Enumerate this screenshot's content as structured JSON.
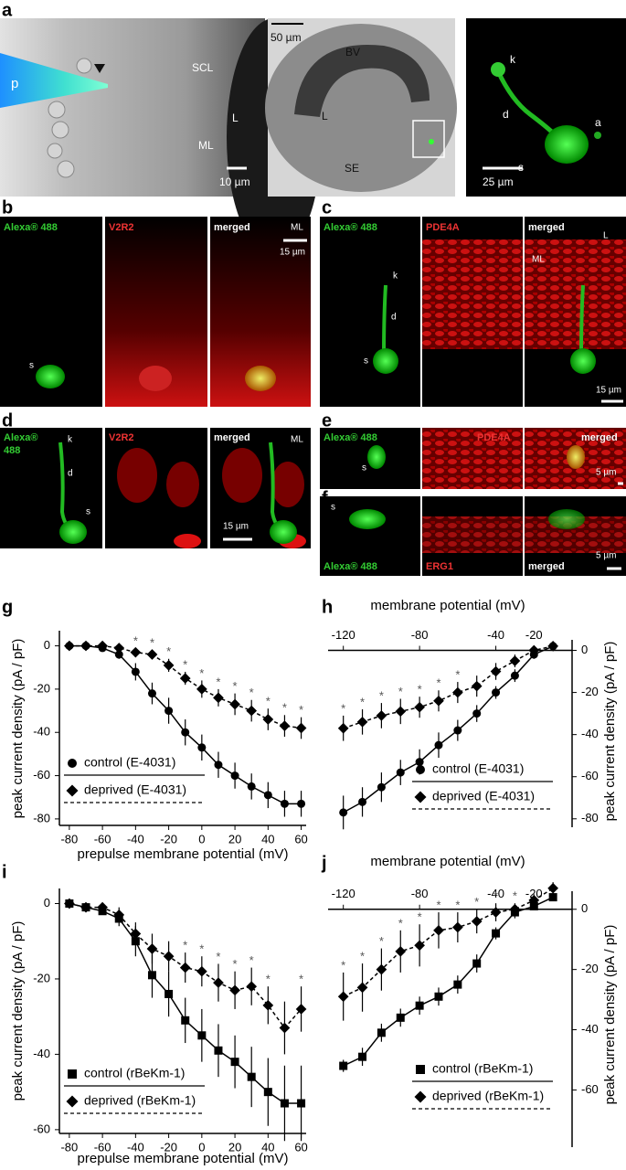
{
  "panels": {
    "a": {
      "label": "a",
      "left": {
        "pipette": "p",
        "scl": "SCL",
        "lumen": "L",
        "ml": "ML",
        "scale": "10 µm"
      },
      "middle": {
        "scale": "50 µm",
        "bv": "BV",
        "lumen": "L",
        "se": "SE"
      },
      "right": {
        "k": "k",
        "d": "d",
        "a": "a",
        "s": "s",
        "scale": "25 µm"
      }
    },
    "b": {
      "label": "b",
      "channels": [
        "Alexa® 488",
        "V2R2",
        "merged"
      ],
      "ml": "ML",
      "scale": "15 µm",
      "s": "s"
    },
    "c": {
      "label": "c",
      "channels": [
        "Alexa® 488",
        "PDE4A",
        "merged"
      ],
      "lumen": "L",
      "ml": "ML",
      "k": "k",
      "d": "d",
      "s": "s",
      "scale": "15 µm"
    },
    "d": {
      "label": "d",
      "channel_1": [
        "Alexa®",
        "488"
      ],
      "channel_2": "V2R2",
      "channel_3": "merged",
      "ml": "ML",
      "k": "k",
      "d": "d",
      "s": "s",
      "scale": "15 µm"
    },
    "e": {
      "label": "e",
      "channels": [
        "Alexa® 488",
        "PDE4A",
        "merged"
      ],
      "s": "s",
      "scale": "5 µm"
    },
    "f": {
      "label": "f",
      "channels": [
        "Alexa® 488",
        "ERG1",
        "merged"
      ],
      "s": "s",
      "scale": "5 µm"
    }
  },
  "chart_data": [
    {
      "type": "line",
      "panel_label": "g",
      "xlabel": "prepulse membrane potential (mV)",
      "ylabel": "peak current density (pA / pF)",
      "x": [
        -80,
        -70,
        -60,
        -50,
        -40,
        -30,
        -20,
        -10,
        0,
        10,
        20,
        30,
        40,
        50,
        60
      ],
      "series": [
        {
          "name": "control (E-4031)",
          "color": "#000000",
          "marker": "circle",
          "line": "solid",
          "values": [
            0,
            0,
            -1,
            -4,
            -12,
            -22,
            -30,
            -40,
            -47,
            -55,
            -60,
            -65,
            -69,
            -73,
            -73
          ],
          "errors": [
            0.5,
            0.5,
            1,
            2,
            4,
            5,
            6,
            6,
            6,
            6,
            6,
            6,
            6,
            6,
            6
          ]
        },
        {
          "name": "deprived (E-4031)",
          "color": "#000000",
          "marker": "diamond",
          "line": "dashed",
          "values": [
            0,
            0,
            0,
            -1,
            -3,
            -4,
            -9,
            -15,
            -20,
            -24,
            -27,
            -30,
            -34,
            -37,
            -38
          ],
          "errors": [
            0.5,
            0.5,
            0.5,
            1,
            2,
            2,
            3,
            3,
            4,
            4,
            5,
            5,
            5,
            5,
            5
          ]
        }
      ],
      "xlim": [
        -86,
        63
      ],
      "ylim": [
        -83,
        7
      ],
      "xticks": [
        -80,
        -60,
        -40,
        -20,
        0,
        20,
        40,
        60
      ],
      "yticks": [
        0,
        -20,
        -40,
        -60,
        -80
      ],
      "x_axis": "bottom",
      "y_axis": "left",
      "significance_marker": "*",
      "significant_x": [
        -40,
        -30,
        -20,
        -10,
        0,
        10,
        20,
        30,
        40,
        50,
        60
      ]
    },
    {
      "type": "line",
      "panel_label": "h",
      "xlabel": "membrane potential (mV)",
      "ylabel": "peak current density (pA / pF)",
      "x": [
        -120,
        -110,
        -100,
        -90,
        -80,
        -70,
        -60,
        -50,
        -40,
        -30,
        -20,
        -10
      ],
      "series": [
        {
          "name": "control (E-4031)",
          "color": "#000000",
          "marker": "circle",
          "line": "solid",
          "values": [
            -77,
            -72,
            -65,
            -58,
            -53,
            -45,
            -38,
            -30,
            -20,
            -12,
            -2,
            2
          ],
          "errors": [
            8,
            7,
            7,
            6,
            6,
            6,
            5,
            4,
            3,
            3,
            2,
            1
          ]
        },
        {
          "name": "deprived (E-4031)",
          "color": "#000000",
          "marker": "diamond",
          "line": "dashed",
          "values": [
            -37,
            -34,
            -31,
            -29,
            -27,
            -24,
            -20,
            -17,
            -10,
            -5,
            0,
            2
          ],
          "errors": [
            6,
            6,
            6,
            6,
            5,
            5,
            5,
            5,
            4,
            3,
            2,
            1
          ]
        }
      ],
      "xlim": [
        -128,
        0
      ],
      "ylim": [
        -84,
        5
      ],
      "xticks": [
        -120,
        -80,
        -40,
        -20
      ],
      "yticks": [
        0,
        -20,
        -40,
        -60,
        -80
      ],
      "x_axis": "top",
      "y_axis": "right",
      "significance_marker": "*",
      "significant_x": [
        -120,
        -110,
        -100,
        -90,
        -80,
        -70,
        -60
      ]
    },
    {
      "type": "line",
      "panel_label": "i",
      "xlabel": "prepulse membrane potential (mV)",
      "ylabel": "peak current density (pA / pF)",
      "x": [
        -80,
        -70,
        -60,
        -50,
        -40,
        -30,
        -20,
        -10,
        0,
        10,
        20,
        30,
        40,
        50,
        60
      ],
      "series": [
        {
          "name": "control (rBeKm-1)",
          "color": "#000000",
          "marker": "square",
          "line": "solid",
          "values": [
            0,
            -1,
            -2,
            -4,
            -10,
            -19,
            -24,
            -31,
            -35,
            -39,
            -42,
            -46,
            -50,
            -53,
            -53
          ],
          "errors": [
            1,
            1,
            1,
            2,
            4,
            6,
            6,
            6,
            7,
            7,
            7,
            8,
            9,
            10,
            10
          ]
        },
        {
          "name": "deprived (rBeKm-1)",
          "color": "#000000",
          "marker": "diamond",
          "line": "dashed",
          "values": [
            0,
            -1,
            -1,
            -3,
            -8,
            -12,
            -14,
            -17,
            -18,
            -21,
            -23,
            -22,
            -27,
            -33,
            -28
          ],
          "errors": [
            1,
            1,
            1,
            2,
            3,
            4,
            4,
            4,
            4,
            5,
            5,
            5,
            5,
            7,
            6
          ]
        }
      ],
      "xlim": [
        -86,
        63
      ],
      "ylim": [
        -61,
        4
      ],
      "xticks": [
        -80,
        -60,
        -40,
        -20,
        0,
        20,
        40,
        60
      ],
      "yticks": [
        0,
        -20,
        -40,
        -60
      ],
      "x_axis": "bottom",
      "y_axis": "left",
      "significance_marker": "*",
      "significant_x": [
        -10,
        0,
        10,
        20,
        30,
        40,
        60
      ]
    },
    {
      "type": "line",
      "panel_label": "j",
      "xlabel": "membrane potential (mV)",
      "ylabel": "peak current density (pA / pF)",
      "x": [
        -120,
        -110,
        -100,
        -90,
        -80,
        -70,
        -60,
        -50,
        -40,
        -30,
        -20,
        -10
      ],
      "series": [
        {
          "name": "control (rBeKm-1)",
          "color": "#000000",
          "marker": "square",
          "line": "solid",
          "values": [
            -52,
            -49,
            -41,
            -36,
            -32,
            -29,
            -25,
            -18,
            -8,
            -1,
            1,
            4
          ],
          "errors": [
            2,
            3,
            3,
            3,
            3,
            3,
            3,
            3,
            2,
            2,
            1,
            1
          ]
        },
        {
          "name": "deprived (rBeKm-1)",
          "color": "#000000",
          "marker": "diamond",
          "line": "dashed",
          "values": [
            -29,
            -26,
            -20,
            -14,
            -12,
            -7,
            -6,
            -4,
            -1,
            0,
            3,
            7
          ],
          "errors": [
            8,
            8,
            7,
            7,
            7,
            6,
            5,
            4,
            3,
            2,
            2,
            2
          ]
        }
      ],
      "xlim": [
        -128,
        0
      ],
      "ylim": [
        -79,
        6
      ],
      "xticks": [
        -120,
        -80,
        -40,
        -20
      ],
      "yticks": [
        0,
        -20,
        -40,
        -60
      ],
      "x_axis": "top",
      "y_axis": "right",
      "significance_marker": "*",
      "significant_x": [
        -120,
        -110,
        -100,
        -90,
        -80,
        -70,
        -60,
        -50,
        -40,
        -30
      ]
    }
  ]
}
